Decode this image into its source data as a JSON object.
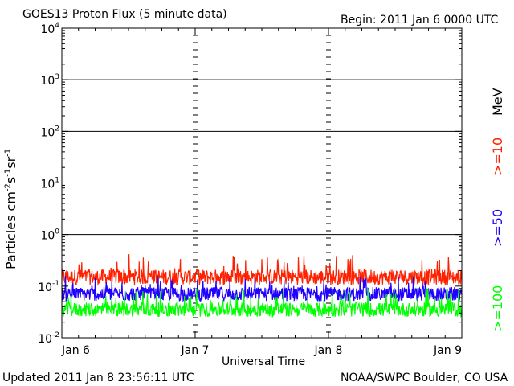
{
  "header": {
    "title": "GOES13 Proton Flux (5 minute data)",
    "begin": "Begin: 2011 Jan 6 0000 UTC"
  },
  "footer": {
    "updated": "Updated 2011 Jan  8 23:56:11 UTC",
    "source": "NOAA/SWPC Boulder, CO USA"
  },
  "chart_data": {
    "type": "line",
    "title": "GOES13 Proton Flux (5 minute data)",
    "xlabel": "Universal Time",
    "ylabel": "Particles cm^-2 s^-1 sr^-1",
    "yscale": "log",
    "ylim": [
      0.01,
      10000
    ],
    "y_ticks": [
      "10^-2",
      "10^-1",
      "10^0",
      "10^1",
      "10^2",
      "10^3",
      "10^4"
    ],
    "x_ticks": [
      "Jan 6",
      "Jan 7",
      "Jan 8",
      "Jan 9"
    ],
    "xlim": [
      "2011-01-06 00:00",
      "2011-01-09 00:00"
    ],
    "threshold_lines": [
      10,
      100,
      1000,
      1
    ],
    "dashed_lines": [
      10
    ],
    "legend_placement": "right",
    "units_label": "MeV",
    "series": [
      {
        "name": ">=10",
        "color": "#ff2000",
        "typical": 0.15,
        "range": [
          0.09,
          0.42
        ]
      },
      {
        "name": ">=50",
        "color": "#2000ff",
        "typical": 0.07,
        "range": [
          0.04,
          0.16
        ]
      },
      {
        "name": ">=100",
        "color": "#00ff00",
        "typical": 0.035,
        "range": [
          0.022,
          0.09
        ]
      }
    ]
  }
}
